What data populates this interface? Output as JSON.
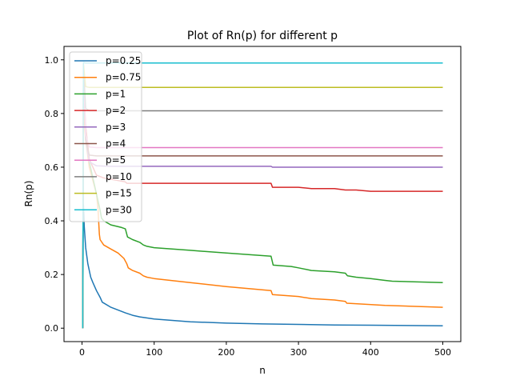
{
  "chart_data": {
    "type": "line",
    "title": "Plot of Rn(p) for different p",
    "xlabel": "n",
    "ylabel": "Rn(p)",
    "xlim": [
      -25,
      525
    ],
    "ylim": [
      -0.05,
      1.05
    ],
    "xticks": [
      0,
      100,
      200,
      300,
      400,
      500
    ],
    "yticks": [
      0.0,
      0.2,
      0.4,
      0.6,
      0.8,
      1.0
    ],
    "xtick_labels": [
      "0",
      "100",
      "200",
      "300",
      "400",
      "500"
    ],
    "ytick_labels": [
      "0.0",
      "0.2",
      "0.4",
      "0.6",
      "0.8",
      "1.0"
    ],
    "grid": false,
    "legend_position": "upper-left",
    "series": [
      {
        "name": "p=0.25",
        "color": "#1f77b4",
        "x": [
          1,
          2,
          3,
          5,
          8,
          12,
          15,
          20,
          25,
          28,
          40,
          60,
          70,
          80,
          100,
          150,
          200,
          250,
          300,
          350,
          400,
          450,
          500
        ],
        "y": [
          0.0,
          0.46,
          0.38,
          0.3,
          0.24,
          0.19,
          0.17,
          0.14,
          0.115,
          0.097,
          0.078,
          0.057,
          0.048,
          0.042,
          0.034,
          0.024,
          0.019,
          0.016,
          0.014,
          0.012,
          0.011,
          0.01,
          0.009
        ]
      },
      {
        "name": "p=0.75",
        "color": "#ff7f0e",
        "x": [
          1,
          2,
          5,
          10,
          15,
          20,
          22,
          24,
          25,
          30,
          40,
          50,
          58,
          62,
          64,
          70,
          80,
          85,
          90,
          100,
          150,
          200,
          262,
          264,
          300,
          318,
          350,
          365,
          367,
          420,
          500
        ],
        "y": [
          0.0,
          0.8,
          0.7,
          0.6,
          0.55,
          0.5,
          0.45,
          0.35,
          0.33,
          0.31,
          0.295,
          0.28,
          0.26,
          0.24,
          0.225,
          0.215,
          0.205,
          0.195,
          0.19,
          0.185,
          0.17,
          0.155,
          0.14,
          0.125,
          0.118,
          0.11,
          0.105,
          0.1,
          0.093,
          0.085,
          0.078
        ]
      },
      {
        "name": "p=1",
        "color": "#2ca02c",
        "x": [
          1,
          2,
          5,
          10,
          20,
          25,
          27,
          30,
          40,
          55,
          60,
          63,
          70,
          80,
          85,
          90,
          100,
          150,
          200,
          262,
          265,
          290,
          300,
          318,
          350,
          365,
          368,
          380,
          400,
          420,
          430,
          500
        ],
        "y": [
          0.0,
          0.85,
          0.75,
          0.62,
          0.5,
          0.44,
          0.41,
          0.4,
          0.385,
          0.375,
          0.37,
          0.34,
          0.33,
          0.32,
          0.31,
          0.305,
          0.3,
          0.29,
          0.28,
          0.268,
          0.235,
          0.23,
          0.225,
          0.215,
          0.21,
          0.205,
          0.195,
          0.19,
          0.185,
          0.178,
          0.175,
          0.17
        ]
      },
      {
        "name": "p=2",
        "color": "#d62728",
        "x": [
          1,
          2,
          5,
          10,
          20,
          30,
          40,
          50,
          60,
          62,
          80,
          90,
          100,
          150,
          200,
          262,
          264,
          300,
          318,
          350,
          365,
          380,
          400,
          430,
          500
        ],
        "y": [
          0.0,
          0.92,
          0.75,
          0.63,
          0.57,
          0.56,
          0.555,
          0.55,
          0.545,
          0.54,
          0.54,
          0.54,
          0.54,
          0.54,
          0.54,
          0.54,
          0.525,
          0.525,
          0.52,
          0.52,
          0.515,
          0.515,
          0.51,
          0.51,
          0.51
        ]
      },
      {
        "name": "p=3",
        "color": "#9467bd",
        "x": [
          1,
          2,
          5,
          10,
          20,
          40,
          100,
          200,
          262,
          264,
          350,
          400,
          500
        ],
        "y": [
          0.0,
          0.95,
          0.7,
          0.62,
          0.605,
          0.603,
          0.603,
          0.603,
          0.603,
          0.6,
          0.6,
          0.6,
          0.6
        ]
      },
      {
        "name": "p=4",
        "color": "#8c564b",
        "x": [
          1,
          2,
          5,
          10,
          20,
          50,
          100,
          200,
          300,
          400,
          500
        ],
        "y": [
          0.0,
          0.96,
          0.7,
          0.645,
          0.642,
          0.642,
          0.642,
          0.642,
          0.642,
          0.642,
          0.642
        ]
      },
      {
        "name": "p=5",
        "color": "#e377c2",
        "x": [
          1,
          2,
          5,
          10,
          20,
          50,
          100,
          200,
          300,
          400,
          500
        ],
        "y": [
          0.0,
          0.97,
          0.72,
          0.675,
          0.673,
          0.673,
          0.673,
          0.673,
          0.673,
          0.673,
          0.673
        ]
      },
      {
        "name": "p=10",
        "color": "#7f7f7f",
        "x": [
          1,
          2,
          5,
          10,
          20,
          50,
          100,
          200,
          300,
          400,
          500
        ],
        "y": [
          0.0,
          0.98,
          0.82,
          0.81,
          0.81,
          0.81,
          0.81,
          0.81,
          0.81,
          0.81,
          0.81
        ]
      },
      {
        "name": "p=15",
        "color": "#bcbd22",
        "x": [
          1,
          2,
          5,
          10,
          20,
          50,
          100,
          200,
          300,
          400,
          500
        ],
        "y": [
          0.0,
          0.985,
          0.9,
          0.897,
          0.897,
          0.897,
          0.897,
          0.897,
          0.897,
          0.897,
          0.897
        ]
      },
      {
        "name": "p=30",
        "color": "#17becf",
        "x": [
          1,
          2,
          5,
          10,
          20,
          50,
          100,
          200,
          300,
          400,
          500
        ],
        "y": [
          0.0,
          0.99,
          0.988,
          0.988,
          0.988,
          0.988,
          0.988,
          0.988,
          0.988,
          0.988,
          0.988
        ]
      }
    ]
  }
}
